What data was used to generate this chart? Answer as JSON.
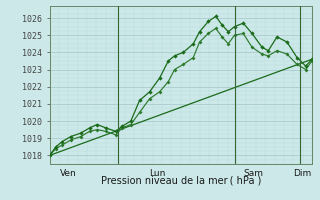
{
  "xlabel": "Pression niveau de la mer ( hPa )",
  "bg_color": "#cce8e8",
  "grid_major_color": "#aacccc",
  "grid_minor_color": "#bbdddd",
  "line_color": "#1a6b1a",
  "ylim": [
    1017.5,
    1026.7
  ],
  "xlim": [
    0,
    210
  ],
  "yticks": [
    1018,
    1019,
    1020,
    1021,
    1022,
    1023,
    1024,
    1025,
    1026
  ],
  "day_boundaries": [
    55,
    148,
    200
  ],
  "day_labels": [
    "Ven",
    "Lun",
    "Sam",
    "Dim"
  ],
  "series1_x": [
    0,
    5,
    10,
    17,
    25,
    32,
    38,
    45,
    53,
    58,
    65,
    72,
    80,
    88,
    95,
    100,
    107,
    115,
    120,
    127,
    133,
    138,
    143,
    148,
    155,
    162,
    170,
    175,
    182,
    190,
    198,
    205,
    210
  ],
  "series1_y": [
    1018.0,
    1018.5,
    1018.8,
    1019.1,
    1019.3,
    1019.6,
    1019.8,
    1019.6,
    1019.4,
    1019.7,
    1020.0,
    1021.2,
    1021.7,
    1022.5,
    1023.5,
    1023.8,
    1024.0,
    1024.5,
    1025.2,
    1025.8,
    1026.1,
    1025.6,
    1025.2,
    1025.5,
    1025.7,
    1025.1,
    1024.3,
    1024.1,
    1024.9,
    1024.6,
    1023.7,
    1023.2,
    1023.6
  ],
  "series2_x": [
    0,
    5,
    10,
    17,
    25,
    32,
    38,
    45,
    53,
    58,
    65,
    72,
    80,
    88,
    95,
    100,
    107,
    115,
    120,
    127,
    133,
    138,
    143,
    148,
    155,
    162,
    170,
    175,
    182,
    190,
    198,
    205,
    210
  ],
  "series2_y": [
    1018.0,
    1018.4,
    1018.6,
    1018.9,
    1019.1,
    1019.4,
    1019.5,
    1019.4,
    1019.2,
    1019.6,
    1019.8,
    1020.5,
    1021.3,
    1021.7,
    1022.3,
    1023.0,
    1023.3,
    1023.7,
    1024.6,
    1025.1,
    1025.4,
    1024.9,
    1024.5,
    1025.0,
    1025.1,
    1024.3,
    1023.9,
    1023.8,
    1024.1,
    1023.9,
    1023.3,
    1023.0,
    1023.5
  ],
  "trend_x": [
    0,
    210
  ],
  "trend_y": [
    1018.0,
    1023.6
  ]
}
